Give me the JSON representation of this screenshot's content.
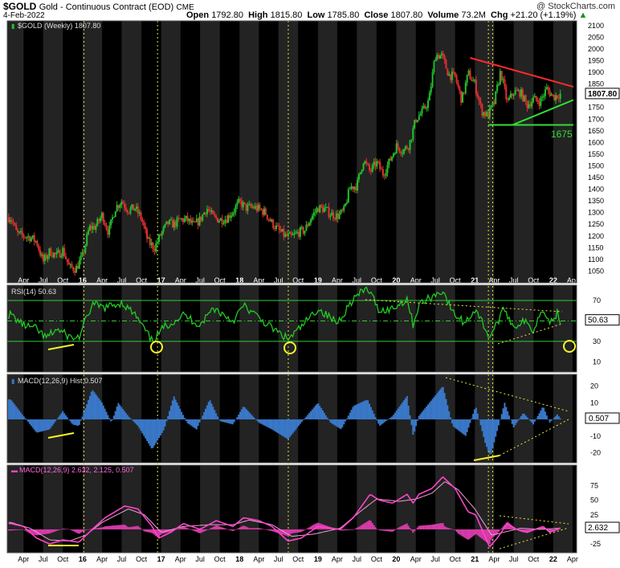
{
  "header": {
    "symbol": "$GOLD",
    "description": "Gold - Continuous Contract (EOD)",
    "exchange": "CME",
    "watermark": "@ StockCharts.com",
    "date": "4-Feb-2022",
    "open_label": "Open",
    "open": "1792.80",
    "high_label": "High",
    "high": "1815.80",
    "low_label": "Low",
    "low": "1785.80",
    "close_label": "Close",
    "close": "1807.80",
    "volume_label": "Volume",
    "volume": "73.2M",
    "chg_label": "Chg",
    "chg": "+21.20 (+1.19%)",
    "chg_arrow": "▲"
  },
  "chart_data": [
    {
      "type": "candlestick",
      "legend": "$GOLD (Weekly) 1807.80",
      "last_value_label": "1807.80",
      "ylim": [
        1000,
        2120
      ],
      "yticks": [
        "1050",
        "1100",
        "1150",
        "1200",
        "1250",
        "1300",
        "1350",
        "1400",
        "1450",
        "1500",
        "1550",
        "1600",
        "1650",
        "1700",
        "1750",
        "1800",
        "1850",
        "1900",
        "1950",
        "2000",
        "2050",
        "2100"
      ],
      "xticks": [
        "Apr",
        "Jul",
        "Oct",
        "16",
        "Apr",
        "Jul",
        "Oct",
        "17",
        "Apr",
        "Jul",
        "Oct",
        "18",
        "Apr",
        "Jul",
        "Oct",
        "19",
        "Apr",
        "Jul",
        "Oct",
        "20",
        "Apr",
        "Jul",
        "Oct",
        "21",
        "Apr",
        "Jul",
        "Oct",
        "22",
        "Apr"
      ],
      "annotation": "1675",
      "close_series": [
        [
          "2015-02-01",
          1280
        ],
        [
          "2015-03-01",
          1210
        ],
        [
          "2015-04-01",
          1200
        ],
        [
          "2015-05-01",
          1195
        ],
        [
          "2015-06-01",
          1175
        ],
        [
          "2015-07-01",
          1090
        ],
        [
          "2015-08-01",
          1135
        ],
        [
          "2015-09-01",
          1115
        ],
        [
          "2015-10-01",
          1140
        ],
        [
          "2015-11-01",
          1065
        ],
        [
          "2015-12-01",
          1060
        ],
        [
          "2016-01-01",
          1115
        ],
        [
          "2016-02-01",
          1235
        ],
        [
          "2016-03-01",
          1240
        ],
        [
          "2016-04-01",
          1290
        ],
        [
          "2016-05-01",
          1215
        ],
        [
          "2016-06-01",
          1320
        ],
        [
          "2016-07-01",
          1350
        ],
        [
          "2016-08-01",
          1310
        ],
        [
          "2016-09-01",
          1320
        ],
        [
          "2016-10-01",
          1275
        ],
        [
          "2016-11-01",
          1175
        ],
        [
          "2016-12-01",
          1150
        ],
        [
          "2017-01-01",
          1210
        ],
        [
          "2017-02-01",
          1255
        ],
        [
          "2017-03-01",
          1250
        ],
        [
          "2017-04-01",
          1270
        ],
        [
          "2017-05-01",
          1270
        ],
        [
          "2017-06-01",
          1245
        ],
        [
          "2017-07-01",
          1270
        ],
        [
          "2017-08-01",
          1320
        ],
        [
          "2017-09-01",
          1280
        ],
        [
          "2017-10-01",
          1270
        ],
        [
          "2017-11-01",
          1275
        ],
        [
          "2017-12-01",
          1305
        ],
        [
          "2018-01-01",
          1345
        ],
        [
          "2018-02-01",
          1320
        ],
        [
          "2018-03-01",
          1325
        ],
        [
          "2018-04-01",
          1315
        ],
        [
          "2018-05-01",
          1300
        ],
        [
          "2018-06-01",
          1255
        ],
        [
          "2018-07-01",
          1225
        ],
        [
          "2018-08-01",
          1200
        ],
        [
          "2018-09-01",
          1195
        ],
        [
          "2018-10-01",
          1215
        ],
        [
          "2018-11-01",
          1225
        ],
        [
          "2018-12-01",
          1280
        ],
        [
          "2019-01-01",
          1320
        ],
        [
          "2019-02-01",
          1315
        ],
        [
          "2019-03-01",
          1295
        ],
        [
          "2019-04-01",
          1285
        ],
        [
          "2019-05-01",
          1305
        ],
        [
          "2019-06-01",
          1410
        ],
        [
          "2019-07-01",
          1415
        ],
        [
          "2019-08-01",
          1525
        ],
        [
          "2019-09-01",
          1475
        ],
        [
          "2019-10-01",
          1515
        ],
        [
          "2019-11-01",
          1465
        ],
        [
          "2019-12-01",
          1520
        ],
        [
          "2020-01-01",
          1585
        ],
        [
          "2020-02-01",
          1565
        ],
        [
          "2020-03-01",
          1590
        ],
        [
          "2020-04-01",
          1700
        ],
        [
          "2020-05-01",
          1730
        ],
        [
          "2020-06-01",
          1780
        ],
        [
          "2020-07-01",
          1975
        ],
        [
          "2020-08-01",
          1970
        ],
        [
          "2020-09-01",
          1890
        ],
        [
          "2020-10-01",
          1880
        ],
        [
          "2020-11-01",
          1780
        ],
        [
          "2020-12-01",
          1895
        ],
        [
          "2021-01-01",
          1850
        ],
        [
          "2021-02-01",
          1735
        ],
        [
          "2021-03-01",
          1715
        ],
        [
          "2021-04-01",
          1770
        ],
        [
          "2021-05-01",
          1905
        ],
        [
          "2021-06-01",
          1770
        ],
        [
          "2021-07-01",
          1815
        ],
        [
          "2021-08-01",
          1815
        ],
        [
          "2021-09-01",
          1760
        ],
        [
          "2021-10-01",
          1785
        ],
        [
          "2021-11-01",
          1775
        ],
        [
          "2021-12-01",
          1830
        ],
        [
          "2022-01-01",
          1795
        ],
        [
          "2022-02-04",
          1807.8
        ]
      ]
    },
    {
      "type": "line",
      "legend": "RSI(14) 50.63",
      "last_value_label": "50.63",
      "ylim": [
        0,
        85
      ],
      "yticks": [
        "10",
        "30",
        "50",
        "70"
      ],
      "reference_lines": [
        30,
        70
      ],
      "series": [
        [
          "2015-02-01",
          56
        ],
        [
          "2015-04-01",
          46
        ],
        [
          "2015-06-01",
          42
        ],
        [
          "2015-07-15",
          33
        ],
        [
          "2015-09-01",
          42
        ],
        [
          "2015-11-15",
          33
        ],
        [
          "2015-12-15",
          34
        ],
        [
          "2016-02-15",
          66
        ],
        [
          "2016-04-15",
          63
        ],
        [
          "2016-07-01",
          68
        ],
        [
          "2016-09-01",
          56
        ],
        [
          "2016-11-20",
          30
        ],
        [
          "2017-01-15",
          44
        ],
        [
          "2017-04-15",
          56
        ],
        [
          "2017-07-01",
          46
        ],
        [
          "2017-09-01",
          63
        ],
        [
          "2017-12-01",
          50
        ],
        [
          "2018-01-20",
          65
        ],
        [
          "2018-04-01",
          53
        ],
        [
          "2018-06-01",
          43
        ],
        [
          "2018-08-15",
          32
        ],
        [
          "2018-10-15",
          44
        ],
        [
          "2019-01-01",
          62
        ],
        [
          "2019-04-01",
          48
        ],
        [
          "2019-06-15",
          72
        ],
        [
          "2019-08-20",
          82
        ],
        [
          "2019-10-15",
          60
        ],
        [
          "2019-12-15",
          62
        ],
        [
          "2020-02-20",
          72
        ],
        [
          "2020-03-20",
          46
        ],
        [
          "2020-04-15",
          66
        ],
        [
          "2020-08-05",
          80
        ],
        [
          "2020-09-20",
          58
        ],
        [
          "2020-11-15",
          48
        ],
        [
          "2021-01-05",
          62
        ],
        [
          "2021-03-10",
          34
        ],
        [
          "2021-05-20",
          62
        ],
        [
          "2021-06-30",
          44
        ],
        [
          "2021-08-15",
          50
        ],
        [
          "2021-09-30",
          41
        ],
        [
          "2021-11-15",
          64
        ],
        [
          "2021-12-15",
          48
        ],
        [
          "2022-01-20",
          58
        ],
        [
          "2022-02-04",
          50.63
        ]
      ]
    },
    {
      "type": "bar",
      "legend": "MACD(12,26,9) Hist 0.507",
      "last_value_label": "0.507",
      "ylim": [
        -26,
        27
      ],
      "yticks": [
        "-20",
        "-10",
        "0",
        "10",
        "20"
      ],
      "series": [
        [
          "2015-02-01",
          12
        ],
        [
          "2015-04-01",
          2
        ],
        [
          "2015-06-01",
          -8
        ],
        [
          "2015-08-01",
          -6
        ],
        [
          "2015-10-01",
          5
        ],
        [
          "2015-11-15",
          -3
        ],
        [
          "2015-12-15",
          -4
        ],
        [
          "2016-02-15",
          18
        ],
        [
          "2016-04-01",
          10
        ],
        [
          "2016-05-15",
          -2
        ],
        [
          "2016-06-15",
          10
        ],
        [
          "2016-08-01",
          2
        ],
        [
          "2016-09-15",
          -4
        ],
        [
          "2016-11-20",
          -18
        ],
        [
          "2017-01-15",
          -6
        ],
        [
          "2017-03-01",
          14
        ],
        [
          "2017-05-01",
          -2
        ],
        [
          "2017-06-15",
          -6
        ],
        [
          "2017-08-15",
          12
        ],
        [
          "2017-10-01",
          -1
        ],
        [
          "2017-12-01",
          -3
        ],
        [
          "2018-01-20",
          8
        ],
        [
          "2018-04-01",
          -2
        ],
        [
          "2018-06-01",
          -6
        ],
        [
          "2018-08-15",
          -12
        ],
        [
          "2018-10-15",
          -2
        ],
        [
          "2019-01-01",
          10
        ],
        [
          "2019-03-01",
          -2
        ],
        [
          "2019-04-20",
          -6
        ],
        [
          "2019-06-15",
          8
        ],
        [
          "2019-08-20",
          12
        ],
        [
          "2019-10-15",
          -4
        ],
        [
          "2019-12-15",
          2
        ],
        [
          "2020-02-20",
          14
        ],
        [
          "2020-03-20",
          -10
        ],
        [
          "2020-04-15",
          2
        ],
        [
          "2020-08-05",
          20
        ],
        [
          "2020-09-20",
          -4
        ],
        [
          "2020-11-20",
          -10
        ],
        [
          "2021-01-05",
          8
        ],
        [
          "2021-02-20",
          -15
        ],
        [
          "2021-03-15",
          -22
        ],
        [
          "2021-05-20",
          10
        ],
        [
          "2021-06-30",
          -5
        ],
        [
          "2021-08-15",
          4
        ],
        [
          "2021-09-30",
          -3
        ],
        [
          "2021-11-15",
          8
        ],
        [
          "2021-12-15",
          -2
        ],
        [
          "2022-01-20",
          3
        ],
        [
          "2022-02-04",
          0.507
        ]
      ]
    },
    {
      "type": "line",
      "legend": "MACD(12,26,9) 2.632, 2.125, 0.507",
      "last_value_label": "2.632",
      "ylim": [
        -40,
        110
      ],
      "yticks": [
        "-25",
        "0",
        "25",
        "50",
        "75"
      ],
      "series": [
        {
          "name": "MACD",
          "values": [
            [
              "2015-02-01",
              10
            ],
            [
              "2015-04-01",
              5
            ],
            [
              "2015-06-01",
              -15
            ],
            [
              "2015-08-01",
              -25
            ],
            [
              "2015-10-01",
              -18
            ],
            [
              "2015-12-15",
              -22
            ],
            [
              "2016-02-15",
              0
            ],
            [
              "2016-04-15",
              20
            ],
            [
              "2016-07-15",
              40
            ],
            [
              "2016-09-15",
              35
            ],
            [
              "2016-11-20",
              5
            ],
            [
              "2016-12-20",
              -15
            ],
            [
              "2017-02-15",
              -5
            ],
            [
              "2017-04-15",
              10
            ],
            [
              "2017-07-01",
              0
            ],
            [
              "2017-09-15",
              15
            ],
            [
              "2017-12-01",
              5
            ],
            [
              "2018-01-20",
              20
            ],
            [
              "2018-04-01",
              15
            ],
            [
              "2018-06-01",
              5
            ],
            [
              "2018-08-15",
              -20
            ],
            [
              "2018-10-15",
              -15
            ],
            [
              "2019-01-01",
              5
            ],
            [
              "2019-04-15",
              0
            ],
            [
              "2019-06-15",
              20
            ],
            [
              "2019-09-01",
              60
            ],
            [
              "2019-10-15",
              50
            ],
            [
              "2019-12-15",
              45
            ],
            [
              "2020-02-20",
              60
            ],
            [
              "2020-03-20",
              45
            ],
            [
              "2020-04-15",
              60
            ],
            [
              "2020-06-15",
              70
            ],
            [
              "2020-08-05",
              90
            ],
            [
              "2020-10-01",
              70
            ],
            [
              "2020-12-01",
              30
            ],
            [
              "2021-01-05",
              25
            ],
            [
              "2021-03-10",
              -30
            ],
            [
              "2021-04-15",
              -15
            ],
            [
              "2021-06-01",
              10
            ],
            [
              "2021-07-15",
              0
            ],
            [
              "2021-09-01",
              -5
            ],
            [
              "2021-11-15",
              5
            ],
            [
              "2021-12-15",
              -5
            ],
            [
              "2022-02-04",
              2.632
            ]
          ]
        },
        {
          "name": "Signal",
          "values": [
            [
              "2015-02-01",
              12
            ],
            [
              "2015-05-01",
              2
            ],
            [
              "2015-08-01",
              -18
            ],
            [
              "2015-11-01",
              -20
            ],
            [
              "2016-01-15",
              -10
            ],
            [
              "2016-04-01",
              12
            ],
            [
              "2016-08-01",
              35
            ],
            [
              "2016-10-15",
              25
            ],
            [
              "2017-01-01",
              -5
            ],
            [
              "2017-04-15",
              5
            ],
            [
              "2017-08-15",
              8
            ],
            [
              "2017-12-01",
              8
            ],
            [
              "2018-02-15",
              16
            ],
            [
              "2018-06-01",
              8
            ],
            [
              "2018-09-01",
              -12
            ],
            [
              "2018-12-15",
              -8
            ],
            [
              "2019-04-15",
              2
            ],
            [
              "2019-07-15",
              30
            ],
            [
              "2019-10-01",
              52
            ],
            [
              "2020-01-15",
              48
            ],
            [
              "2020-04-01",
              52
            ],
            [
              "2020-06-15",
              62
            ],
            [
              "2020-08-15",
              82
            ],
            [
              "2020-10-15",
              68
            ],
            [
              "2021-01-01",
              35
            ],
            [
              "2021-03-20",
              -10
            ],
            [
              "2021-05-15",
              -5
            ],
            [
              "2021-08-01",
              2
            ],
            [
              "2021-11-01",
              0
            ],
            [
              "2022-02-04",
              2.125
            ]
          ]
        }
      ]
    }
  ]
}
